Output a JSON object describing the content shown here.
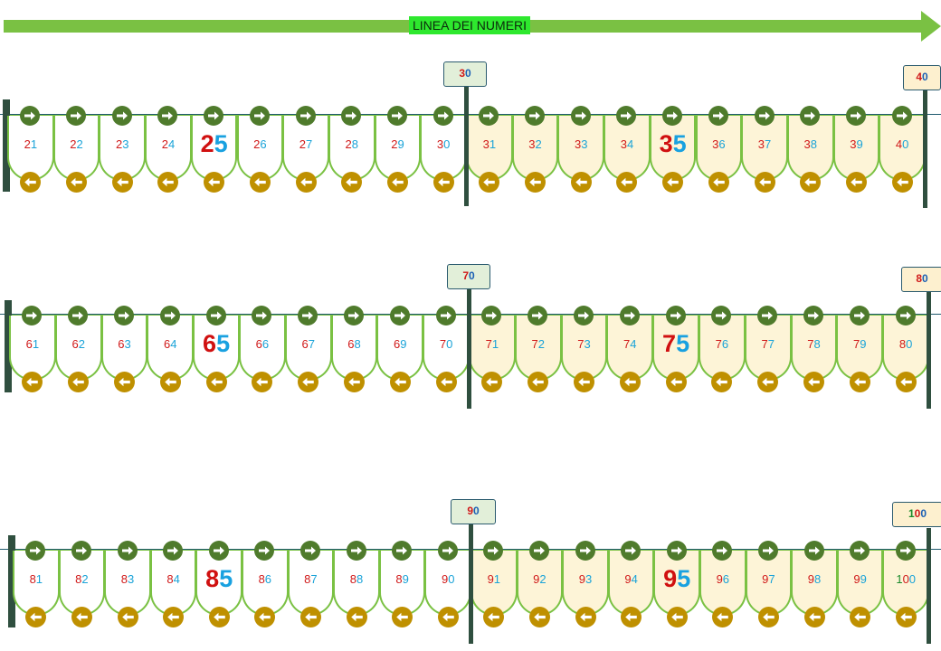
{
  "header": {
    "title": "LINEA DEI NUMERI"
  },
  "rows": [
    {
      "numbers": [
        "21",
        "22",
        "23",
        "24",
        "25",
        "26",
        "27",
        "28",
        "29",
        "30",
        "31",
        "32",
        "33",
        "34",
        "35",
        "36",
        "37",
        "38",
        "39",
        "40"
      ],
      "flags": [
        {
          "tens": "3",
          "units": "0"
        },
        {
          "tens": "4",
          "units": "0"
        }
      ]
    },
    {
      "numbers": [
        "61",
        "62",
        "63",
        "64",
        "65",
        "66",
        "67",
        "68",
        "69",
        "70",
        "71",
        "72",
        "73",
        "74",
        "75",
        "76",
        "77",
        "78",
        "79",
        "80"
      ],
      "flags": [
        {
          "tens": "7",
          "units": "0"
        },
        {
          "tens": "8",
          "units": "0"
        }
      ]
    },
    {
      "numbers": [
        "81",
        "82",
        "83",
        "84",
        "85",
        "86",
        "87",
        "88",
        "89",
        "90",
        "91",
        "92",
        "93",
        "94",
        "95",
        "96",
        "97",
        "98",
        "99",
        "100"
      ],
      "flags": [
        {
          "tens": "9",
          "units": "0"
        },
        {
          "hundreds": "1",
          "tens": "0",
          "units": "0"
        }
      ]
    }
  ],
  "icons": {
    "forward": "right-arrow-icon",
    "backward": "left-arrow-icon"
  },
  "colors": {
    "arrow": "#7ac143",
    "forward_button": "#4f7b2c",
    "backward_button": "#bf9000",
    "cream": "#fdf4d7"
  }
}
